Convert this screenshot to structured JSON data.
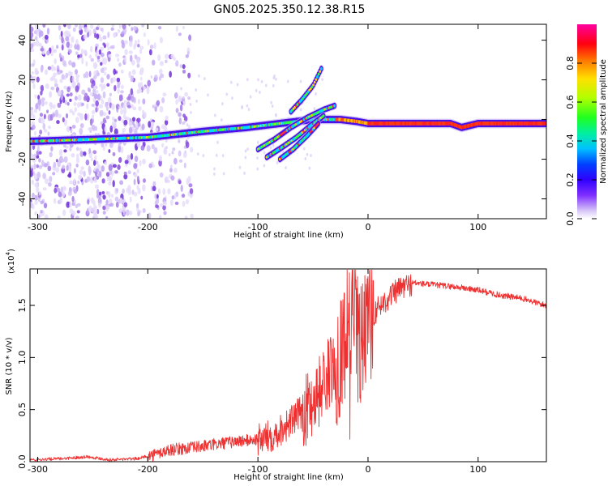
{
  "title": "GN05.2025.350.12.38.R15",
  "chart_data": [
    {
      "type": "heatmap",
      "title": "GN05.2025.350.12.38.R15",
      "xlabel": "Height of straight line (km)",
      "ylabel": "Frequency (Hz)",
      "xlim": [
        -307,
        162
      ],
      "ylim": [
        -50,
        48
      ],
      "xticks": [
        -300,
        -200,
        -100,
        0,
        100
      ],
      "yticks": [
        -40,
        -20,
        0,
        20,
        40
      ],
      "colorbar": {
        "label": "Normalized spectral amplitude",
        "range": [
          0,
          1
        ],
        "ticks": [
          0.0,
          0.2,
          0.4,
          0.6,
          0.8
        ],
        "tick_labels": [
          "0.0",
          "0.2",
          "0.4",
          "0.6",
          "0.8"
        ]
      },
      "ridges": [
        {
          "name": "main-trace",
          "x": [
            -307,
            -250,
            -200,
            -150,
            -110,
            -80,
            -50,
            -35,
            -25,
            -10,
            0,
            20,
            60,
            75,
            85,
            100,
            162
          ],
          "y": [
            -11,
            -10,
            -9,
            -6,
            -4,
            -2,
            0,
            0,
            0,
            -1,
            -2,
            -2,
            -2,
            -2,
            -4,
            -2,
            -2
          ]
        },
        {
          "name": "branch-1",
          "x": [
            -100,
            -85,
            -70,
            -55,
            -40,
            -30
          ],
          "y": [
            -15,
            -10,
            -4,
            1,
            5,
            7
          ]
        },
        {
          "name": "branch-2",
          "x": [
            -92,
            -78,
            -65,
            -52,
            -40
          ],
          "y": [
            -19,
            -14,
            -9,
            -3,
            2
          ]
        },
        {
          "name": "branch-3",
          "x": [
            -80,
            -68,
            -55,
            -45
          ],
          "y": [
            -20,
            -15,
            -8,
            -2
          ]
        },
        {
          "name": "upper-streak",
          "x": [
            -70,
            -60,
            -50,
            -42
          ],
          "y": [
            4,
            10,
            17,
            26
          ]
        }
      ]
    },
    {
      "type": "line",
      "xlabel": "Height of straight line (km)",
      "ylabel": "SNR (10 * v/v)",
      "y_multiplier": "(x10",
      "y_multiplier_exp": "4",
      "xlim": [
        -307,
        162
      ],
      "ylim": [
        0,
        1.85
      ],
      "xticks": [
        -300,
        -200,
        -100,
        0,
        100
      ],
      "yticks": [
        0.0,
        0.5,
        1.0,
        1.5
      ],
      "ytick_labels": [
        "0.0",
        "0.5",
        "1.0",
        "1.5"
      ],
      "color": "#ee3030",
      "series": [
        {
          "name": "SNR",
          "x": [
            -307,
            -280,
            -255,
            -235,
            -210,
            -195,
            -180,
            -160,
            -140,
            -120,
            -100,
            -85,
            -70,
            -55,
            -45,
            -38,
            -30,
            -25,
            -20,
            -16,
            -12,
            -8,
            -5,
            0,
            10,
            20,
            30,
            40,
            60,
            80,
            100,
            120,
            140,
            162
          ],
          "y": [
            0.02,
            0.03,
            0.05,
            0.02,
            0.03,
            0.07,
            0.12,
            0.14,
            0.17,
            0.2,
            0.22,
            0.28,
            0.4,
            0.55,
            0.7,
            0.85,
            0.95,
            1.1,
            1.3,
            1.5,
            1.4,
            1.2,
            1.25,
            1.35,
            1.5,
            1.6,
            1.68,
            1.72,
            1.7,
            1.68,
            1.65,
            1.6,
            1.57,
            1.5
          ]
        }
      ]
    }
  ]
}
